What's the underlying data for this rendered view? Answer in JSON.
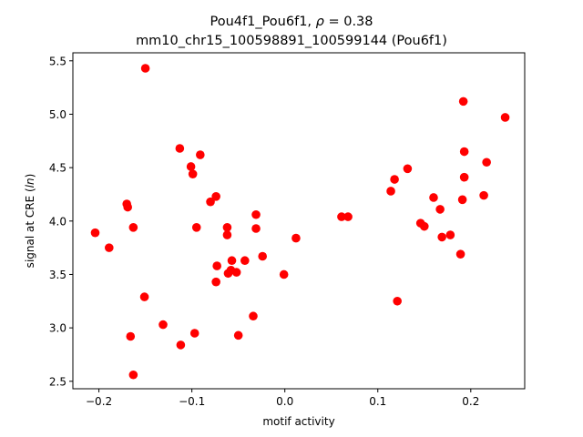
{
  "chart_data": {
    "type": "scatter",
    "title_line1_prefix": "Pou4f1_Pou6f1, ",
    "title_line1_rho_symbol": "ρ",
    "title_line1_rho_value": " = 0.38",
    "title_line2": "mm10_chr15_100598891_100599144 (Pou6f1)",
    "xlabel": "motif activity",
    "ylabel_prefix": "signal at CRE (",
    "ylabel_italic": "ln",
    "ylabel_suffix": ")",
    "xlim": [
      -0.228,
      0.258
    ],
    "ylim": [
      2.43,
      5.575
    ],
    "xticks": [
      -0.2,
      -0.1,
      0.0,
      0.1,
      0.2
    ],
    "xtick_labels": [
      "−0.2",
      "−0.1",
      "0.0",
      "0.1",
      "0.2"
    ],
    "yticks": [
      2.5,
      3.0,
      3.5,
      4.0,
      4.5,
      5.0,
      5.5
    ],
    "ytick_labels": [
      "2.5",
      "3.0",
      "3.5",
      "4.0",
      "4.5",
      "5.0",
      "5.5"
    ],
    "grid": false,
    "marker_color": "#ff0000",
    "points": [
      {
        "x": -0.204,
        "y": 3.89
      },
      {
        "x": -0.189,
        "y": 3.75
      },
      {
        "x": -0.17,
        "y": 4.16
      },
      {
        "x": -0.169,
        "y": 4.13
      },
      {
        "x": -0.166,
        "y": 2.92
      },
      {
        "x": -0.163,
        "y": 3.94
      },
      {
        "x": -0.163,
        "y": 2.56
      },
      {
        "x": -0.151,
        "y": 3.29
      },
      {
        "x": -0.15,
        "y": 5.43
      },
      {
        "x": -0.131,
        "y": 3.03
      },
      {
        "x": -0.113,
        "y": 4.68
      },
      {
        "x": -0.112,
        "y": 2.84
      },
      {
        "x": -0.101,
        "y": 4.51
      },
      {
        "x": -0.099,
        "y": 4.44
      },
      {
        "x": -0.097,
        "y": 2.95
      },
      {
        "x": -0.095,
        "y": 3.94
      },
      {
        "x": -0.091,
        "y": 4.62
      },
      {
        "x": -0.08,
        "y": 4.18
      },
      {
        "x": -0.074,
        "y": 4.23
      },
      {
        "x": -0.074,
        "y": 3.43
      },
      {
        "x": -0.073,
        "y": 3.58
      },
      {
        "x": -0.062,
        "y": 3.94
      },
      {
        "x": -0.062,
        "y": 3.87
      },
      {
        "x": -0.061,
        "y": 3.51
      },
      {
        "x": -0.058,
        "y": 3.54
      },
      {
        "x": -0.057,
        "y": 3.63
      },
      {
        "x": -0.052,
        "y": 3.52
      },
      {
        "x": -0.05,
        "y": 2.93
      },
      {
        "x": -0.043,
        "y": 3.63
      },
      {
        "x": -0.034,
        "y": 3.11
      },
      {
        "x": -0.031,
        "y": 4.06
      },
      {
        "x": -0.031,
        "y": 3.93
      },
      {
        "x": -0.024,
        "y": 3.67
      },
      {
        "x": -0.001,
        "y": 3.5
      },
      {
        "x": 0.012,
        "y": 3.84
      },
      {
        "x": 0.061,
        "y": 4.04
      },
      {
        "x": 0.068,
        "y": 4.04
      },
      {
        "x": 0.114,
        "y": 4.28
      },
      {
        "x": 0.118,
        "y": 4.39
      },
      {
        "x": 0.121,
        "y": 3.25
      },
      {
        "x": 0.132,
        "y": 4.49
      },
      {
        "x": 0.146,
        "y": 3.98
      },
      {
        "x": 0.15,
        "y": 3.95
      },
      {
        "x": 0.16,
        "y": 4.22
      },
      {
        "x": 0.167,
        "y": 4.11
      },
      {
        "x": 0.169,
        "y": 3.85
      },
      {
        "x": 0.178,
        "y": 3.87
      },
      {
        "x": 0.189,
        "y": 3.69
      },
      {
        "x": 0.191,
        "y": 4.2
      },
      {
        "x": 0.192,
        "y": 5.12
      },
      {
        "x": 0.193,
        "y": 4.41
      },
      {
        "x": 0.193,
        "y": 4.65
      },
      {
        "x": 0.214,
        "y": 4.24
      },
      {
        "x": 0.217,
        "y": 4.55
      },
      {
        "x": 0.237,
        "y": 4.97
      }
    ]
  }
}
